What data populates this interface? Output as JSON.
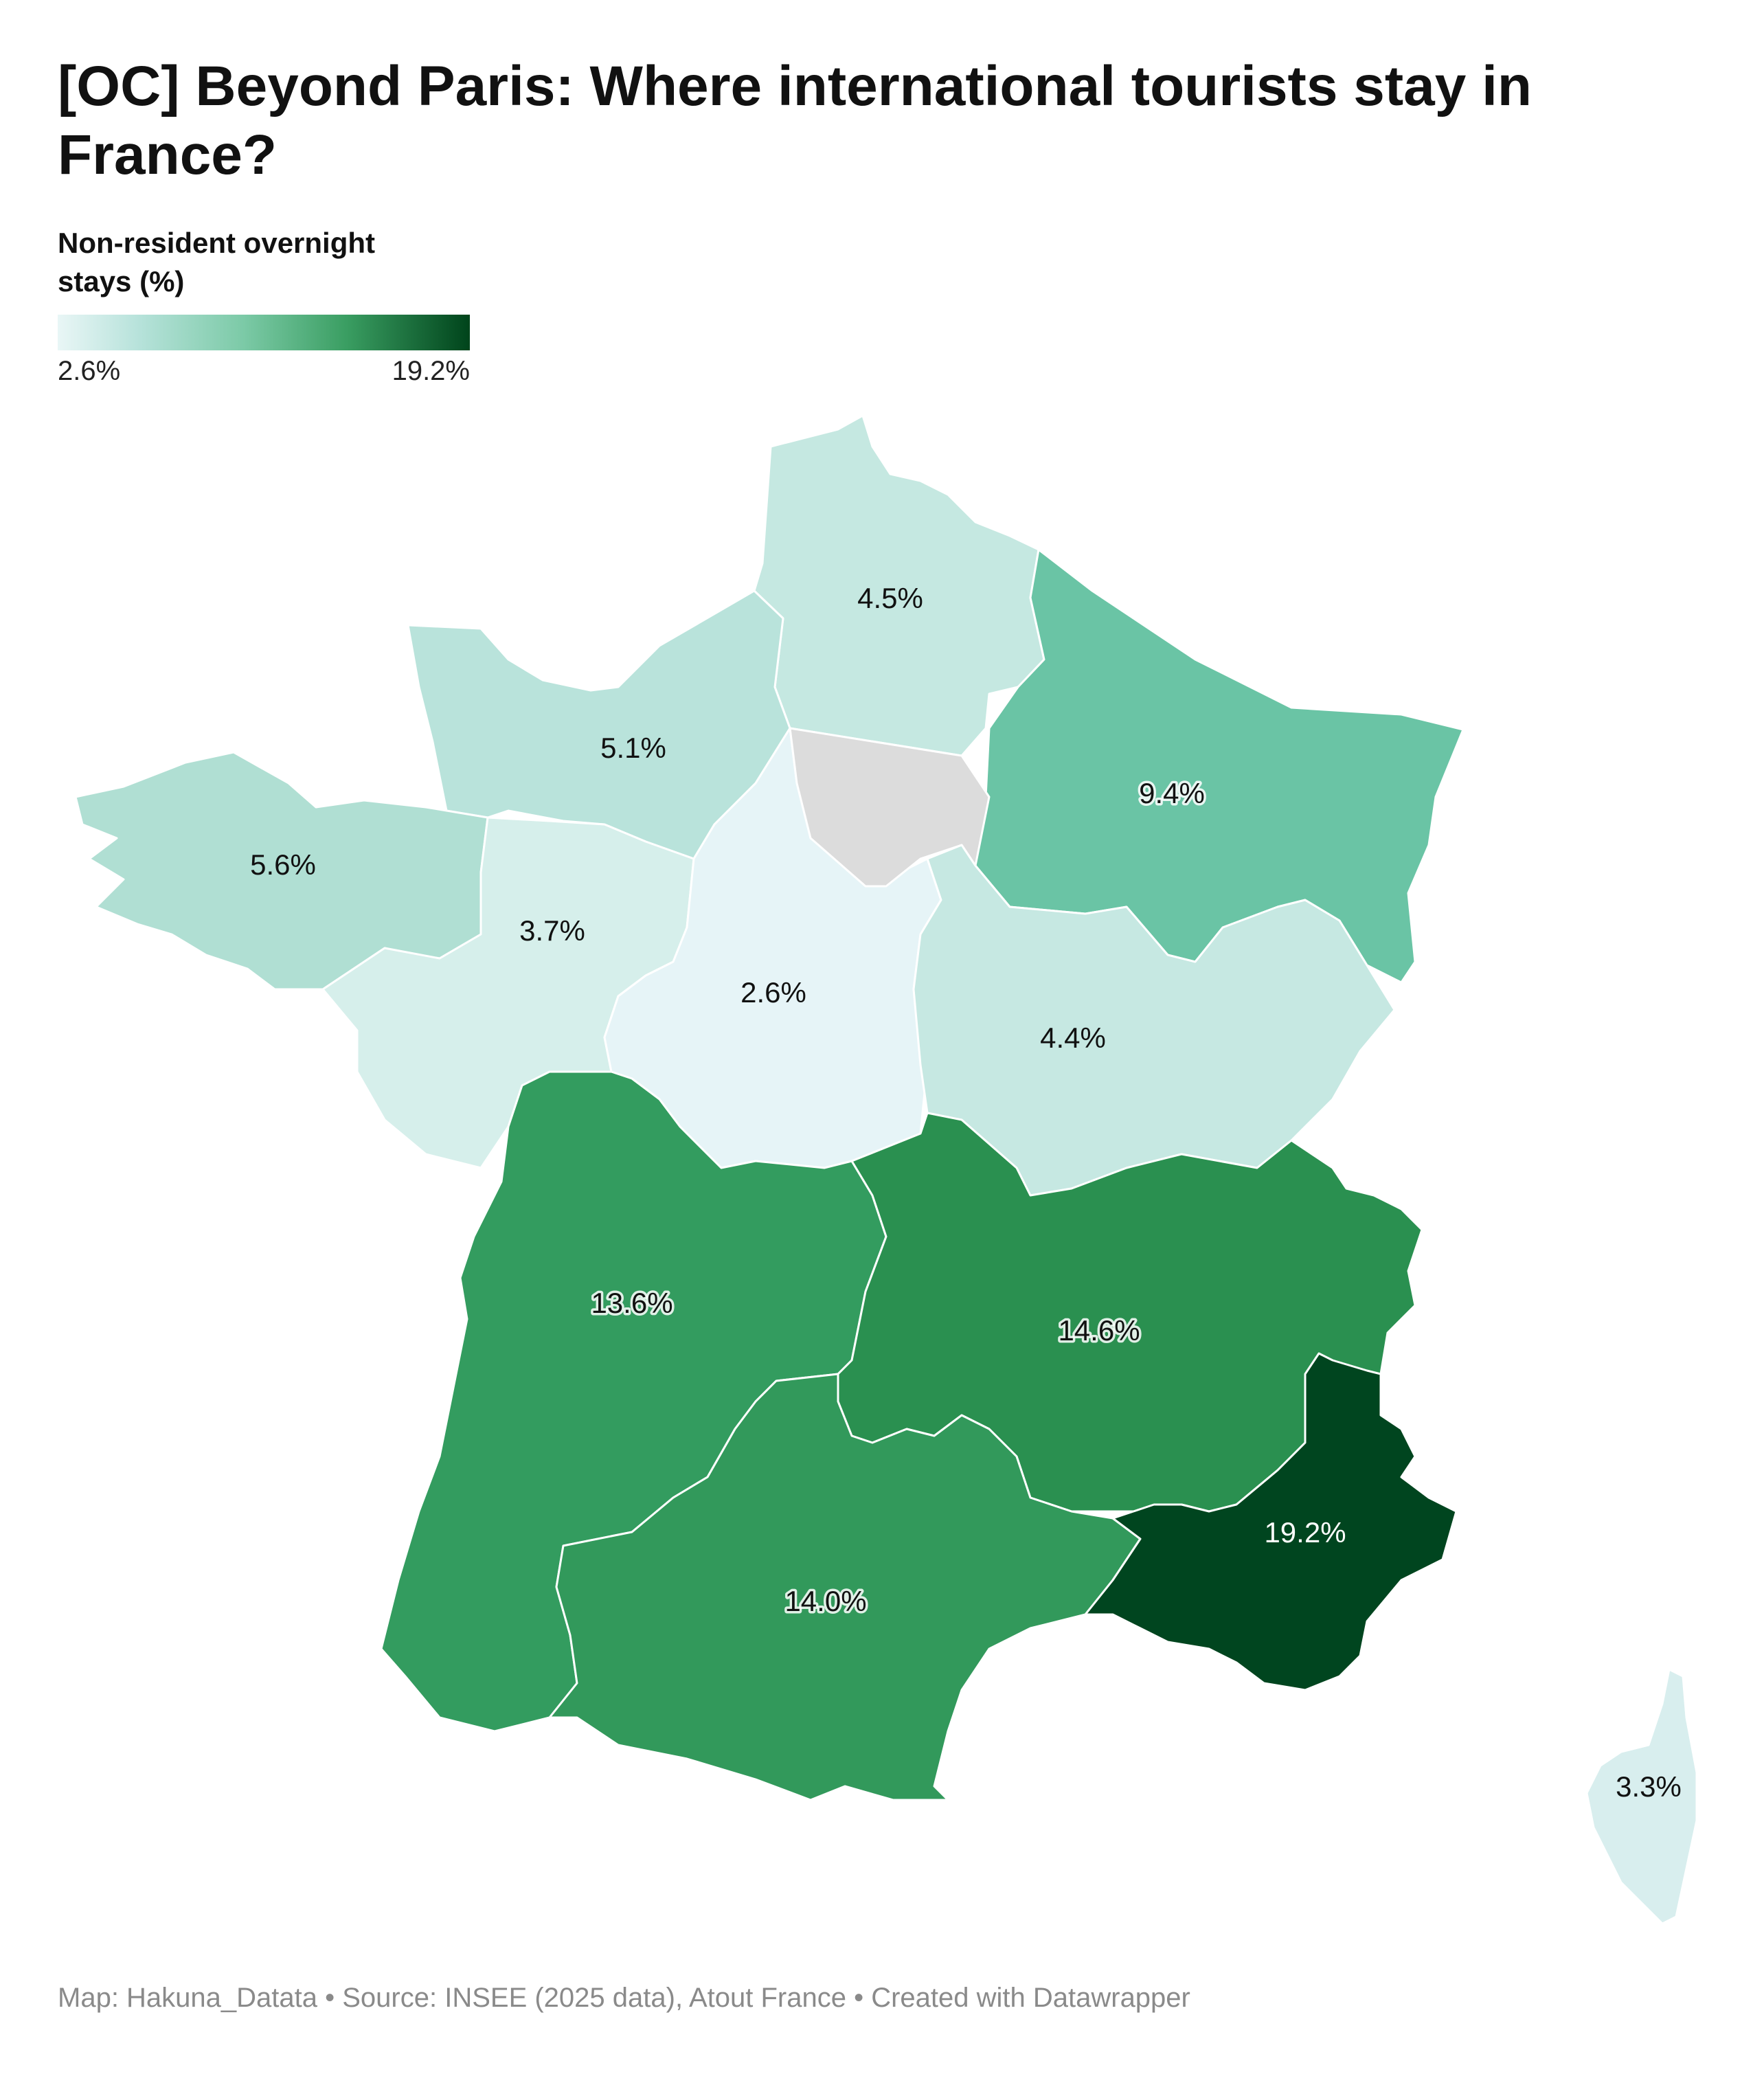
{
  "title": "[OC] Beyond Paris: Where international tourists stay in France?",
  "legend": {
    "title": "Non-resident overnight stays (%)",
    "min_label": "2.6%",
    "max_label": "19.2%",
    "min_value": 2.6,
    "max_value": 19.2,
    "color_low": "#e9f6f6",
    "color_high": "#00441b"
  },
  "regions": [
    {
      "name": "Hauts-de-France",
      "value": 4.5,
      "label": "4.5%",
      "color": "#c5e8e1"
    },
    {
      "name": "Normandie",
      "value": 5.1,
      "label": "5.1%",
      "color": "#b9e3db"
    },
    {
      "name": "Bretagne",
      "value": 5.6,
      "label": "5.6%",
      "color": "#b0dfd3"
    },
    {
      "name": "Grand Est",
      "value": 9.4,
      "label": "9.4%",
      "color": "#6ac4a5"
    },
    {
      "name": "Pays de la Loire",
      "value": 3.7,
      "label": "3.7%",
      "color": "#d6efeb"
    },
    {
      "name": "Centre-Val de Loire",
      "value": 2.6,
      "label": "2.6%",
      "color": "#e6f4f7"
    },
    {
      "name": "Bourgogne-Franche-Comté",
      "value": 4.4,
      "label": "4.4%",
      "color": "#c6e8e2"
    },
    {
      "name": "Île-de-France",
      "value": null,
      "label": "",
      "color": "#dcdcdc"
    },
    {
      "name": "Nouvelle-Aquitaine",
      "value": 13.6,
      "label": "13.6%",
      "color": "#339c5f"
    },
    {
      "name": "Auvergne-Rhône-Alpes",
      "value": 14.6,
      "label": "14.6%",
      "color": "#2a9050"
    },
    {
      "name": "Occitanie",
      "value": 14.0,
      "label": "14.0%",
      "color": "#32995b"
    },
    {
      "name": "Provence-Alpes-Côte d'Azur",
      "value": 19.2,
      "label": "19.2%",
      "color": "#00451f"
    },
    {
      "name": "Corse",
      "value": 3.3,
      "label": "3.3%",
      "color": "#d8eeee"
    }
  ],
  "footer": "Map: Hakuna_Datata • Source: INSEE (2025 data), Atout France • Created with Datawrapper"
}
